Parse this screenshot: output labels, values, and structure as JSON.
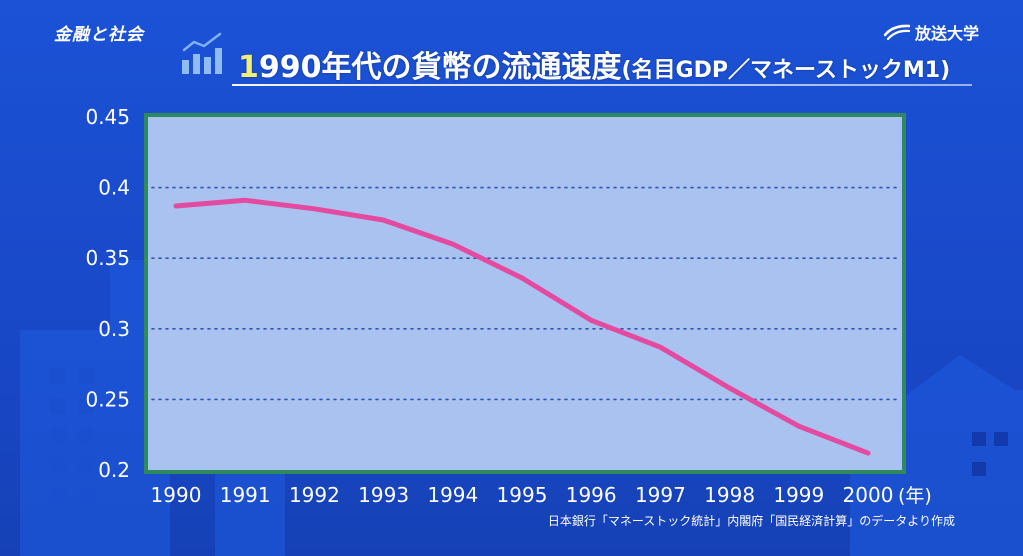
{
  "header": {
    "topic": "金融と社会",
    "logo_text": "放送大学",
    "logo_icon": "wave-logo-icon",
    "title_icon": "bar-chart-icon",
    "title_first_char": "1",
    "title_rest": "990年代の貨幣の流通速度",
    "title_sub": "(名目GDP／マネーストックM1)"
  },
  "colors": {
    "background": "#1a4ccd",
    "plot_bg": "#a9c2ef",
    "plot_frame": "#2e8a5e",
    "line": "#e34aa0",
    "accent": "#f3ec77"
  },
  "chart_data": {
    "type": "line",
    "title": "1990年代の貨幣の流通速度(名目GDP／マネーストックM1)",
    "xlabel": "(年)",
    "ylabel": "",
    "x": [
      1990,
      1991,
      1992,
      1993,
      1994,
      1995,
      1996,
      1997,
      1998,
      1999,
      2000
    ],
    "x_tick_labels": [
      "1990",
      "1991",
      "1992",
      "1993",
      "1994",
      "1995",
      "1996",
      "1997",
      "1998",
      "1999",
      "2000"
    ],
    "x_unit": "(年)",
    "y_tick_labels": [
      "0.45",
      "0.4",
      "0.35",
      "0.3",
      "0.25",
      "0.2"
    ],
    "y_ticks": [
      0.45,
      0.4,
      0.35,
      0.3,
      0.25,
      0.2
    ],
    "ylim": [
      0.2,
      0.45
    ],
    "series": [
      {
        "values": [
          0.387,
          0.391,
          0.385,
          0.377,
          0.36,
          0.336,
          0.306,
          0.287,
          0.258,
          0.231,
          0.212
        ]
      }
    ],
    "grid": "horizontal-dotted",
    "legend": "none",
    "source": "日本銀行「マネーストック統計」内閣府「国民経済計算」のデータより作成"
  }
}
